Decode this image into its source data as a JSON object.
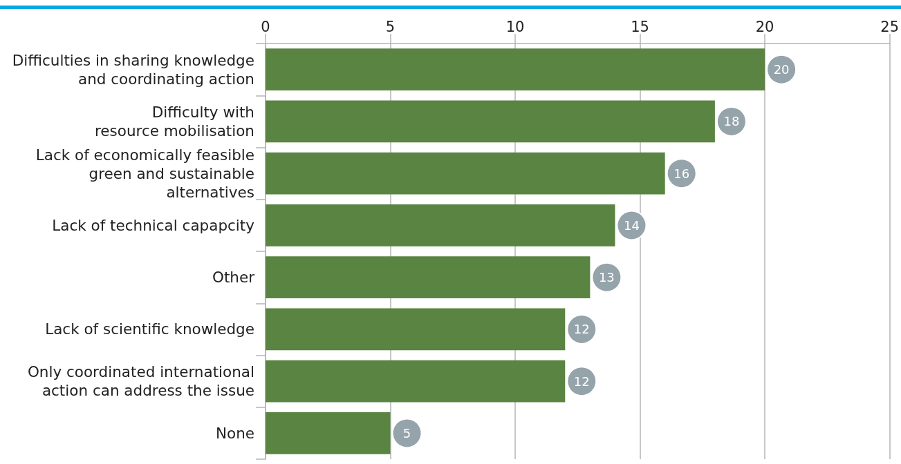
{
  "chart_data": {
    "type": "bar",
    "orientation": "horizontal",
    "categories": [
      "Difficulties in sharing knowledge\nand coordinating action",
      "Difficulty with\nresource mobilisation",
      "Lack of economically feasible\ngreen and sustainable\nalternatives",
      "Lack of technical capapcity",
      "Other",
      "Lack of scientific knowledge",
      "Only coordinated international\naction can address the issue",
      "None"
    ],
    "values": [
      20,
      18,
      16,
      14,
      13,
      12,
      12,
      5
    ],
    "color": "#5a8442",
    "xlim": [
      0,
      25
    ],
    "xticks": [
      0,
      5,
      10,
      15,
      20,
      25
    ],
    "grid": "x",
    "data_labels": true
  }
}
